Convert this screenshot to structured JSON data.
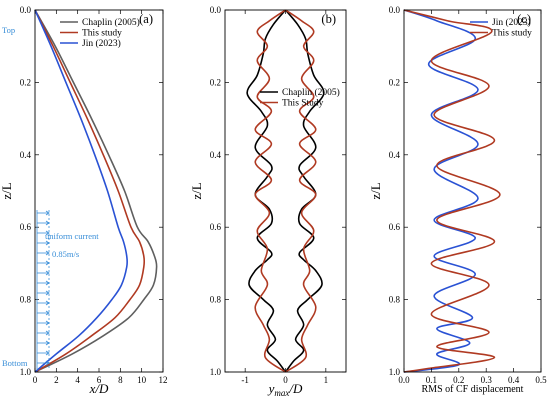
{
  "chart_data": [
    {
      "panel": "(a)",
      "type": "line",
      "xlabel": "x/D",
      "ylabel": "z/L",
      "xlim": [
        0,
        12
      ],
      "ylim": [
        0,
        1.0
      ],
      "y_reversed": true,
      "xticks": [
        0,
        2,
        4,
        6,
        8,
        10,
        12
      ],
      "yticks": [
        0,
        0.2,
        0.4,
        0.6,
        0.8,
        1.0
      ],
      "legend_position": "top-right",
      "annotations": {
        "top": "Top",
        "bottom": "Bottom",
        "current": "uniform current",
        "speed": "0.85m/s"
      },
      "series": [
        {
          "name": "Chaplin (2005)",
          "color": "#5f5f5f",
          "x": [
            0,
            1.9,
            3.6,
            5.3,
            6.9,
            8.4,
            9.6,
            10.6,
            11.2,
            11.4,
            11.1,
            10.2,
            8.8,
            6.4,
            3.5,
            0
          ],
          "y": [
            0,
            0.1,
            0.2,
            0.3,
            0.4,
            0.5,
            0.6,
            0.64,
            0.68,
            0.71,
            0.76,
            0.8,
            0.85,
            0.9,
            0.95,
            1.0
          ]
        },
        {
          "name": "This study",
          "color": "#b03a22",
          "x": [
            0,
            1.7,
            3.3,
            4.9,
            6.4,
            7.8,
            9.0,
            9.8,
            10.2,
            10.2,
            9.8,
            8.9,
            7.5,
            5.3,
            2.9,
            0
          ],
          "y": [
            0,
            0.1,
            0.2,
            0.3,
            0.4,
            0.5,
            0.6,
            0.64,
            0.68,
            0.71,
            0.76,
            0.8,
            0.85,
            0.9,
            0.95,
            1.0
          ]
        },
        {
          "name": "Jin (2023)",
          "color": "#2a52d4",
          "x": [
            0,
            1.5,
            2.9,
            4.3,
            5.6,
            6.8,
            7.8,
            8.3,
            8.6,
            8.6,
            8.1,
            7.2,
            5.8,
            4.1,
            2.0,
            0
          ],
          "y": [
            0,
            0.1,
            0.2,
            0.3,
            0.4,
            0.5,
            0.6,
            0.64,
            0.68,
            0.71,
            0.76,
            0.8,
            0.85,
            0.9,
            0.95,
            1.0
          ]
        }
      ]
    },
    {
      "panel": "(b)",
      "type": "line",
      "xlabel": "y_max/D",
      "ylabel": "z/L",
      "xlim": [
        -1.5,
        1.5
      ],
      "ylim": [
        0,
        1.0
      ],
      "y_reversed": true,
      "xticks": [
        -1,
        0,
        1
      ],
      "yticks": [
        0,
        0.2,
        0.4,
        0.6,
        0.8,
        1.0
      ],
      "legend_position": "upper-center",
      "symmetric_envelope": true,
      "series": [
        {
          "name": "Chaplin (2005)",
          "color": "#000000",
          "x": [
            0.0,
            0.3,
            0.5,
            0.55,
            0.7,
            0.95,
            0.6,
            0.45,
            0.75,
            0.35,
            0.45,
            0.75,
            0.4,
            0.35,
            0.7,
            0.35,
            0.45,
            0.75,
            0.9,
            0.55,
            0.3,
            0.45,
            0.25,
            0.45,
            0.2,
            0.0
          ],
          "y": [
            0.0,
            0.04,
            0.08,
            0.12,
            0.18,
            0.23,
            0.28,
            0.32,
            0.38,
            0.43,
            0.46,
            0.51,
            0.55,
            0.59,
            0.63,
            0.67,
            0.69,
            0.72,
            0.76,
            0.8,
            0.83,
            0.87,
            0.91,
            0.94,
            0.97,
            1.0
          ]
        },
        {
          "name": "This Study",
          "color": "#b03a22",
          "x": [
            0.0,
            0.4,
            0.7,
            0.45,
            0.7,
            0.4,
            0.7,
            0.35,
            0.75,
            0.35,
            0.75,
            0.35,
            0.75,
            0.4,
            0.7,
            0.45,
            0.6,
            0.45,
            0.75,
            0.55,
            0.4,
            0.5,
            0.0
          ],
          "y": [
            0.0,
            0.03,
            0.06,
            0.1,
            0.14,
            0.19,
            0.24,
            0.28,
            0.33,
            0.37,
            0.42,
            0.47,
            0.51,
            0.56,
            0.61,
            0.66,
            0.72,
            0.76,
            0.82,
            0.87,
            0.91,
            0.96,
            1.0
          ]
        }
      ]
    },
    {
      "panel": "(c)",
      "type": "line",
      "xlabel": "RMS of CF displacement",
      "ylabel": "z/L",
      "xlim": [
        0,
        0.5
      ],
      "ylim": [
        0,
        1.0
      ],
      "y_reversed": true,
      "xticks": [
        0.0,
        0.1,
        0.2,
        0.3,
        0.4,
        0.5
      ],
      "yticks": [
        0,
        0.2,
        0.4,
        0.6,
        0.8,
        1.0
      ],
      "legend_position": "top-right",
      "series": [
        {
          "name": "Jin (2023)",
          "color": "#2a52d4",
          "x": [
            0.0,
            0.12,
            0.26,
            0.09,
            0.27,
            0.1,
            0.27,
            0.11,
            0.27,
            0.11,
            0.26,
            0.11,
            0.26,
            0.11,
            0.25,
            0.12,
            0.24,
            0.12,
            0.2,
            0.0
          ],
          "y": [
            0.0,
            0.03,
            0.08,
            0.15,
            0.22,
            0.29,
            0.37,
            0.44,
            0.52,
            0.58,
            0.63,
            0.68,
            0.73,
            0.79,
            0.85,
            0.88,
            0.92,
            0.95,
            0.98,
            1.0
          ]
        },
        {
          "name": "This study",
          "color": "#b03a22",
          "x": [
            0.0,
            0.16,
            0.32,
            0.1,
            0.31,
            0.11,
            0.33,
            0.12,
            0.35,
            0.12,
            0.33,
            0.1,
            0.31,
            0.1,
            0.31,
            0.12,
            0.33,
            0.09,
            0.0
          ],
          "y": [
            0.0,
            0.03,
            0.06,
            0.14,
            0.21,
            0.29,
            0.36,
            0.43,
            0.51,
            0.58,
            0.64,
            0.7,
            0.76,
            0.84,
            0.89,
            0.93,
            0.96,
            0.99,
            1.0
          ]
        }
      ]
    }
  ]
}
